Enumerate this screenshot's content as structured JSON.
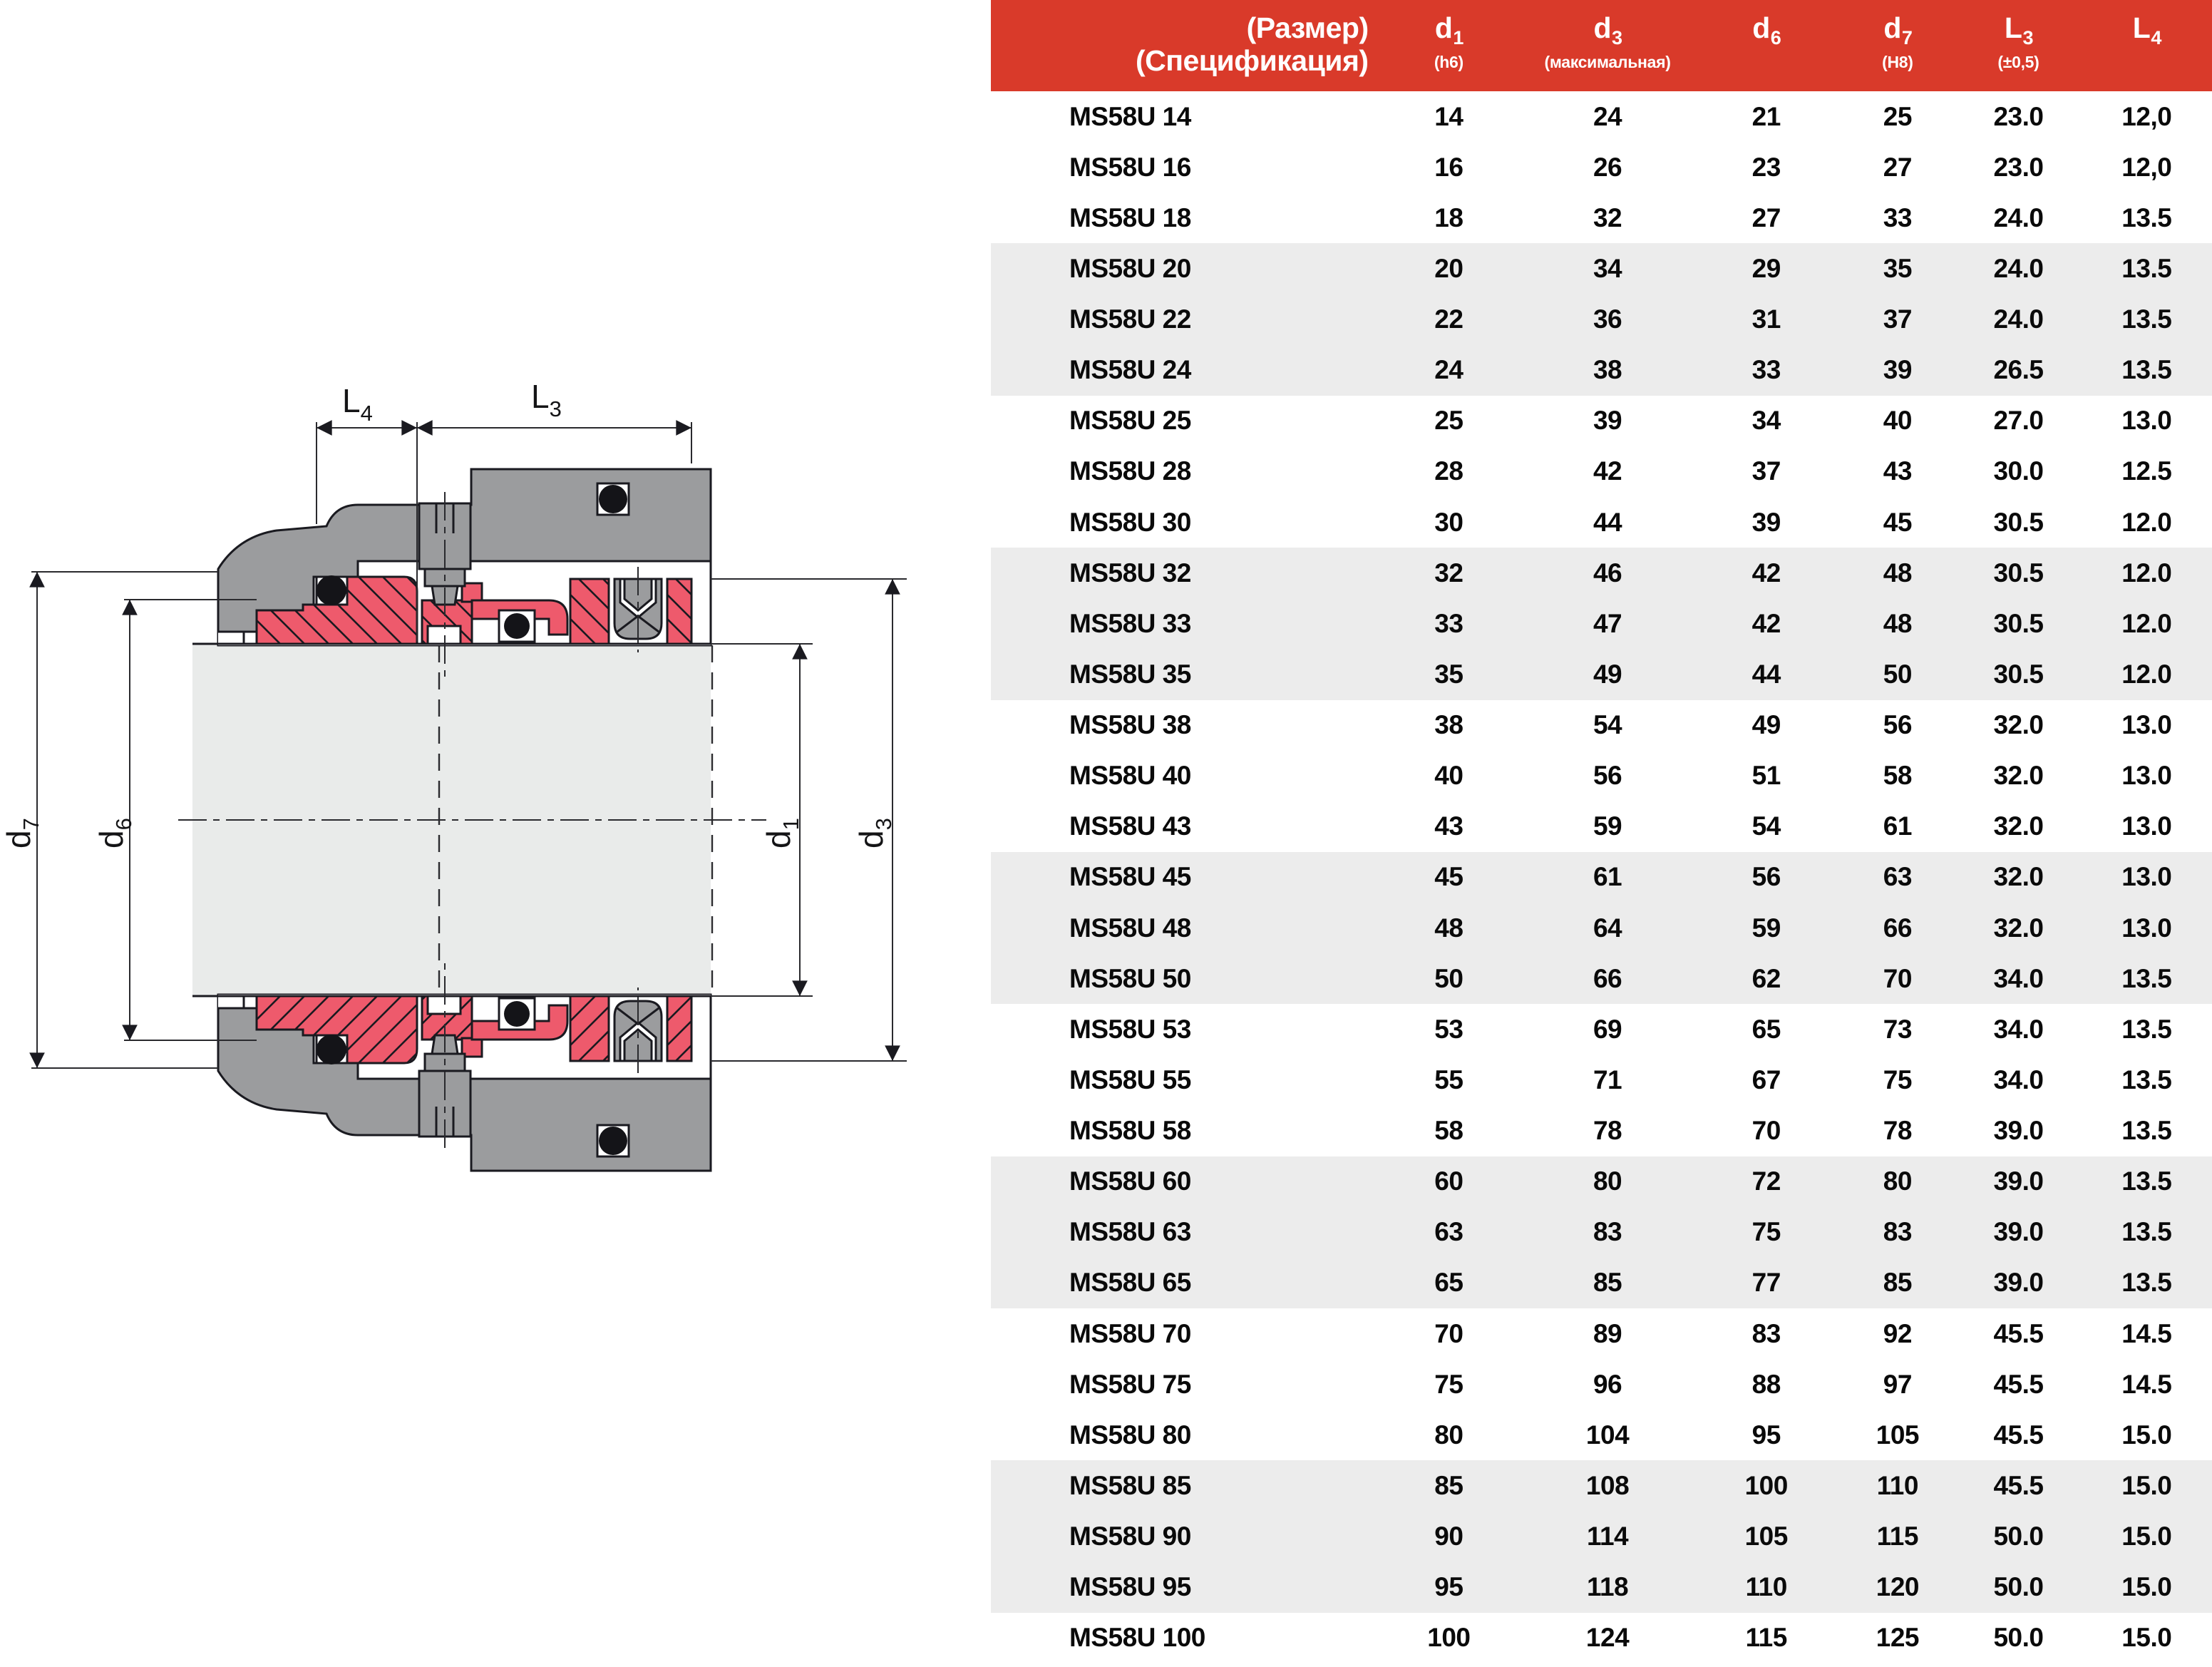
{
  "table": {
    "header": {
      "size_line1": "(Размер)",
      "size_line2": "(Спецификация)",
      "columns": [
        {
          "main": "d",
          "sub": "1",
          "note": "(h6)"
        },
        {
          "main": "d",
          "sub": "3",
          "note": "(максимальная)"
        },
        {
          "main": "d",
          "sub": "6",
          "note": ""
        },
        {
          "main": "d",
          "sub": "7",
          "note": "(H8)"
        },
        {
          "main": "L",
          "sub": "3",
          "note": "(±0,5)"
        },
        {
          "main": "L",
          "sub": "4",
          "note": ""
        }
      ]
    },
    "rows": [
      {
        "spec": "MS58U 14",
        "d1": "14",
        "d3": "24",
        "d6": "21",
        "d7": "25",
        "l3": "23.0",
        "l4": "12,0"
      },
      {
        "spec": "MS58U 16",
        "d1": "16",
        "d3": "26",
        "d6": "23",
        "d7": "27",
        "l3": "23.0",
        "l4": "12,0"
      },
      {
        "spec": "MS58U 18",
        "d1": "18",
        "d3": "32",
        "d6": "27",
        "d7": "33",
        "l3": "24.0",
        "l4": "13.5"
      },
      {
        "spec": "MS58U 20",
        "d1": "20",
        "d3": "34",
        "d6": "29",
        "d7": "35",
        "l3": "24.0",
        "l4": "13.5"
      },
      {
        "spec": "MS58U 22",
        "d1": "22",
        "d3": "36",
        "d6": "31",
        "d7": "37",
        "l3": "24.0",
        "l4": "13.5"
      },
      {
        "spec": "MS58U 24",
        "d1": "24",
        "d3": "38",
        "d6": "33",
        "d7": "39",
        "l3": "26.5",
        "l4": "13.5"
      },
      {
        "spec": "MS58U 25",
        "d1": "25",
        "d3": "39",
        "d6": "34",
        "d7": "40",
        "l3": "27.0",
        "l4": "13.0"
      },
      {
        "spec": "MS58U 28",
        "d1": "28",
        "d3": "42",
        "d6": "37",
        "d7": "43",
        "l3": "30.0",
        "l4": "12.5"
      },
      {
        "spec": "MS58U 30",
        "d1": "30",
        "d3": "44",
        "d6": "39",
        "d7": "45",
        "l3": "30.5",
        "l4": "12.0"
      },
      {
        "spec": "MS58U 32",
        "d1": "32",
        "d3": "46",
        "d6": "42",
        "d7": "48",
        "l3": "30.5",
        "l4": "12.0"
      },
      {
        "spec": "MS58U 33",
        "d1": "33",
        "d3": "47",
        "d6": "42",
        "d7": "48",
        "l3": "30.5",
        "l4": "12.0"
      },
      {
        "spec": "MS58U 35",
        "d1": "35",
        "d3": "49",
        "d6": "44",
        "d7": "50",
        "l3": "30.5",
        "l4": "12.0"
      },
      {
        "spec": "MS58U 38",
        "d1": "38",
        "d3": "54",
        "d6": "49",
        "d7": "56",
        "l3": "32.0",
        "l4": "13.0"
      },
      {
        "spec": "MS58U 40",
        "d1": "40",
        "d3": "56",
        "d6": "51",
        "d7": "58",
        "l3": "32.0",
        "l4": "13.0"
      },
      {
        "spec": "MS58U 43",
        "d1": "43",
        "d3": "59",
        "d6": "54",
        "d7": "61",
        "l3": "32.0",
        "l4": "13.0"
      },
      {
        "spec": "MS58U 45",
        "d1": "45",
        "d3": "61",
        "d6": "56",
        "d7": "63",
        "l3": "32.0",
        "l4": "13.0"
      },
      {
        "spec": "MS58U 48",
        "d1": "48",
        "d3": "64",
        "d6": "59",
        "d7": "66",
        "l3": "32.0",
        "l4": "13.0"
      },
      {
        "spec": "MS58U 50",
        "d1": "50",
        "d3": "66",
        "d6": "62",
        "d7": "70",
        "l3": "34.0",
        "l4": "13.5"
      },
      {
        "spec": "MS58U 53",
        "d1": "53",
        "d3": "69",
        "d6": "65",
        "d7": "73",
        "l3": "34.0",
        "l4": "13.5"
      },
      {
        "spec": "MS58U 55",
        "d1": "55",
        "d3": "71",
        "d6": "67",
        "d7": "75",
        "l3": "34.0",
        "l4": "13.5"
      },
      {
        "spec": "MS58U 58",
        "d1": "58",
        "d3": "78",
        "d6": "70",
        "d7": "78",
        "l3": "39.0",
        "l4": "13.5"
      },
      {
        "spec": "MS58U 60",
        "d1": "60",
        "d3": "80",
        "d6": "72",
        "d7": "80",
        "l3": "39.0",
        "l4": "13.5"
      },
      {
        "spec": "MS58U 63",
        "d1": "63",
        "d3": "83",
        "d6": "75",
        "d7": "83",
        "l3": "39.0",
        "l4": "13.5"
      },
      {
        "spec": "MS58U 65",
        "d1": "65",
        "d3": "85",
        "d6": "77",
        "d7": "85",
        "l3": "39.0",
        "l4": "13.5"
      },
      {
        "spec": "MS58U 70",
        "d1": "70",
        "d3": "89",
        "d6": "83",
        "d7": "92",
        "l3": "45.5",
        "l4": "14.5"
      },
      {
        "spec": "MS58U 75",
        "d1": "75",
        "d3": "96",
        "d6": "88",
        "d7": "97",
        "l3": "45.5",
        "l4": "14.5"
      },
      {
        "spec": "MS58U 80",
        "d1": "80",
        "d3": "104",
        "d6": "95",
        "d7": "105",
        "l3": "45.5",
        "l4": "15.0"
      },
      {
        "spec": "MS58U 85",
        "d1": "85",
        "d3": "108",
        "d6": "100",
        "d7": "110",
        "l3": "45.5",
        "l4": "15.0"
      },
      {
        "spec": "MS58U 90",
        "d1": "90",
        "d3": "114",
        "d6": "105",
        "d7": "115",
        "l3": "50.0",
        "l4": "15.0"
      },
      {
        "spec": "MS58U 95",
        "d1": "95",
        "d3": "118",
        "d6": "110",
        "d7": "120",
        "l3": "50.0",
        "l4": "15.0"
      },
      {
        "spec": "MS58U 100",
        "d1": "100",
        "d3": "124",
        "d6": "115",
        "d7": "125",
        "l3": "50.0",
        "l4": "15.0"
      }
    ]
  },
  "diagram": {
    "dims": [
      {
        "id": "L4",
        "main": "L",
        "sub": "4"
      },
      {
        "id": "L3",
        "main": "L",
        "sub": "3"
      },
      {
        "id": "d7",
        "main": "d",
        "sub": "7"
      },
      {
        "id": "d6",
        "main": "d",
        "sub": "6"
      },
      {
        "id": "d1",
        "main": "d",
        "sub": "1"
      },
      {
        "id": "d3",
        "main": "d",
        "sub": "3"
      }
    ]
  },
  "colors": {
    "header_red": "#d93a2a",
    "seal_red": "#ee5a6c",
    "housing_gray": "#9b9c9e",
    "shaft_gray": "#e9ebea",
    "row_alt_gray": "#ececec",
    "line_dark": "#1a1a20"
  }
}
